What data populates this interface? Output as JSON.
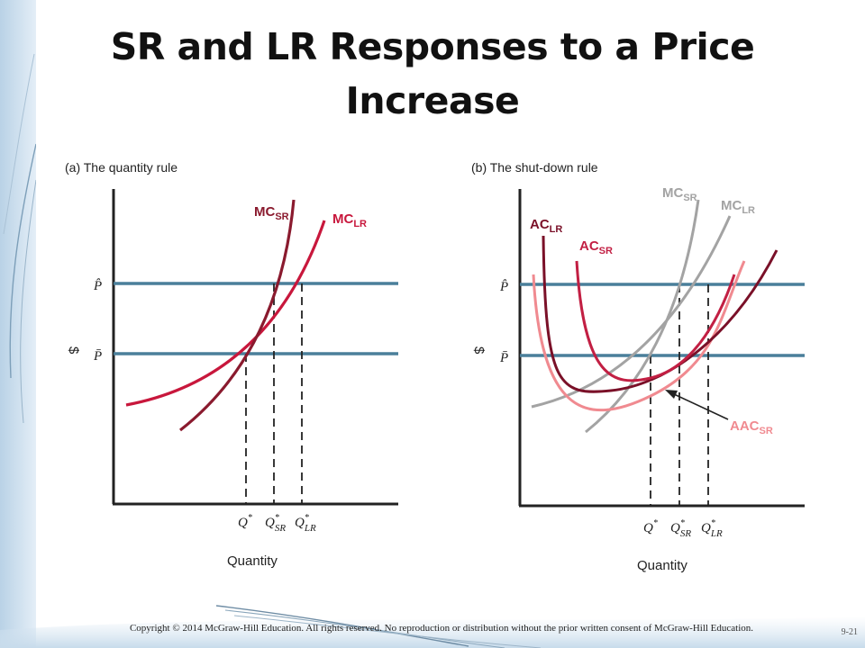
{
  "slide": {
    "title": "SR and LR Responses to a Price Increase",
    "copyright": "Copyright © 2014 McGraw-Hill Education. All rights reserved. No reproduction or distribution without the prior written consent of McGraw-Hill Education.",
    "page_number": "9-21"
  },
  "colors": {
    "price_line": "#4a7f9a",
    "mc_sr": "#8a1a2e",
    "mc_lr": "#c8173c",
    "ac_lr": "#7a1028",
    "ac_sr": "#c21f43",
    "aac_sr": "#f08a90",
    "gray_curves": "#a3a3a3",
    "axis": "#222222"
  },
  "panels": [
    {
      "title": "(a) The quantity rule",
      "y_axis_label": "$",
      "x_axis_label": "Quantity",
      "price_labels": [
        "P̂",
        "P̄"
      ],
      "quantity_labels": [
        {
          "main": "Q",
          "sup": "*",
          "sub": ""
        },
        {
          "main": "Q",
          "sup": "*",
          "sub": "SR"
        },
        {
          "main": "Q",
          "sup": "*",
          "sub": "LR"
        }
      ],
      "curves": [
        {
          "name": "MC",
          "sub": "SR",
          "color_key": "mc_sr"
        },
        {
          "name": "MC",
          "sub": "LR",
          "color_key": "mc_lr"
        }
      ]
    },
    {
      "title": "(b) The shut-down rule",
      "y_axis_label": "$",
      "x_axis_label": "Quantity",
      "price_labels": [
        "P̂",
        "P̄"
      ],
      "quantity_labels": [
        {
          "main": "Q",
          "sup": "*",
          "sub": ""
        },
        {
          "main": "Q",
          "sup": "*",
          "sub": "SR"
        },
        {
          "main": "Q",
          "sup": "*",
          "sub": "LR"
        }
      ],
      "curves": [
        {
          "name": "MC",
          "sub": "SR",
          "color_key": "gray_curves"
        },
        {
          "name": "MC",
          "sub": "LR",
          "color_key": "gray_curves"
        },
        {
          "name": "AC",
          "sub": "LR",
          "color_key": "ac_lr"
        },
        {
          "name": "AC",
          "sub": "SR",
          "color_key": "ac_sr"
        },
        {
          "name": "AAC",
          "sub": "SR",
          "color_key": "aac_sr"
        }
      ]
    }
  ]
}
